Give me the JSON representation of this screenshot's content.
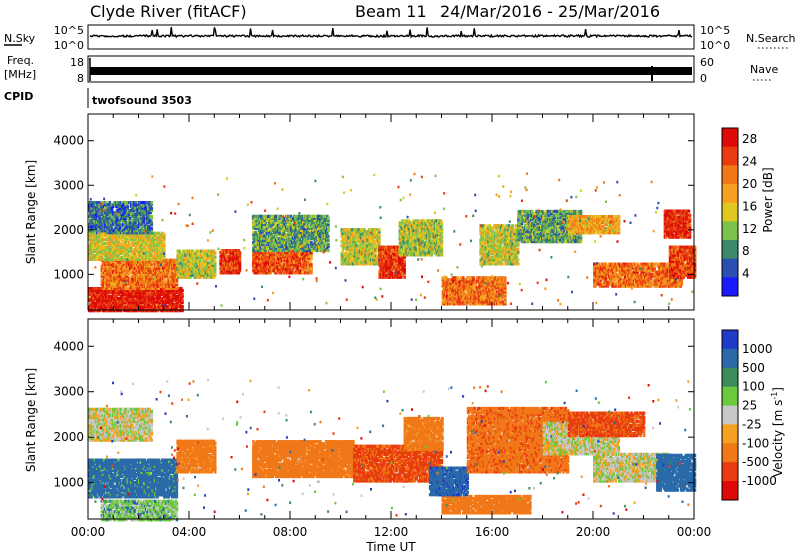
{
  "header": {
    "station": "Clyde River (fitACF)",
    "beam": "Beam 11",
    "dates": "24/Mar/2016 - 25/Mar/2016"
  },
  "strips": {
    "nsky_label": "N.Sky",
    "nsky_ticks": [
      "10^5",
      "10^0"
    ],
    "nsearch_label": "N.Search",
    "nsearch_ticks": [
      "10^5",
      "10^0"
    ],
    "freq_label_1": "Freq.",
    "freq_label_2": "[MHz]",
    "freq_ticks": [
      "18",
      "8"
    ],
    "nave_label": "Nave",
    "nave_ticks": [
      "60",
      "0"
    ],
    "cpid_label": "CPID",
    "cpid_value": "twofsound 3503"
  },
  "chart_data": [
    {
      "type": "heatmap",
      "title": "",
      "xlabel": "",
      "ylabel": "Slant Range [km]",
      "xlim_hours": [
        0,
        24
      ],
      "ylim_km": [
        200,
        4600
      ],
      "y_ticks": [
        "1000",
        "2000",
        "3000",
        "4000"
      ],
      "colorbar": {
        "label": "Power [dB]",
        "ticks": [
          "4",
          "8",
          "12",
          "16",
          "20",
          "24",
          "28"
        ],
        "range": [
          0,
          30
        ],
        "colors": [
          "#1a1aff",
          "#2a4fb0",
          "#3d8a6a",
          "#7dc24a",
          "#e0c820",
          "#f5a020",
          "#f07818",
          "#e83c10",
          "#dd0a08"
        ]
      },
      "bands": [
        {
          "t": [
            0.0,
            3.7
          ],
          "r": [
            150,
            650
          ],
          "dB": 28
        },
        {
          "t": [
            0.5,
            3.5
          ],
          "r": [
            650,
            1300
          ],
          "dB": 22
        },
        {
          "t": [
            0.0,
            3.0
          ],
          "r": [
            1300,
            1900
          ],
          "dB": 15
        },
        {
          "t": [
            0.0,
            2.5
          ],
          "r": [
            1900,
            2600
          ],
          "dB": 7
        },
        {
          "t": [
            3.5,
            5.0
          ],
          "r": [
            900,
            1500
          ],
          "dB": 14
        },
        {
          "t": [
            5.2,
            6.0
          ],
          "r": [
            1000,
            1500
          ],
          "dB": 26
        },
        {
          "t": [
            6.5,
            8.8
          ],
          "r": [
            1000,
            1500
          ],
          "dB": 24
        },
        {
          "t": [
            6.5,
            9.5
          ],
          "r": [
            1500,
            2300
          ],
          "dB": 10
        },
        {
          "t": [
            10.0,
            11.5
          ],
          "r": [
            1200,
            2000
          ],
          "dB": 14
        },
        {
          "t": [
            11.5,
            12.5
          ],
          "r": [
            900,
            1600
          ],
          "dB": 26
        },
        {
          "t": [
            12.3,
            14.0
          ],
          "r": [
            1400,
            2200
          ],
          "dB": 13
        },
        {
          "t": [
            14.0,
            16.5
          ],
          "r": [
            300,
            900
          ],
          "dB": 22
        },
        {
          "t": [
            15.5,
            17.0
          ],
          "r": [
            1200,
            2100
          ],
          "dB": 14
        },
        {
          "t": [
            17.0,
            19.5
          ],
          "r": [
            1700,
            2400
          ],
          "dB": 10
        },
        {
          "t": [
            19.0,
            21.0
          ],
          "r": [
            1900,
            2300
          ],
          "dB": 18
        },
        {
          "t": [
            20.0,
            23.5
          ],
          "r": [
            700,
            1200
          ],
          "dB": 22
        },
        {
          "t": [
            22.8,
            23.8
          ],
          "r": [
            1800,
            2400
          ],
          "dB": 27
        },
        {
          "t": [
            23.0,
            24.0
          ],
          "r": [
            900,
            1600
          ],
          "dB": 25
        }
      ]
    },
    {
      "type": "heatmap",
      "title": "",
      "xlabel": "Time UT",
      "ylabel": "Slant Range [km]",
      "xlim_hours": [
        0,
        24
      ],
      "ylim_km": [
        200,
        4600
      ],
      "x_ticks": [
        "00:00",
        "04:00",
        "08:00",
        "12:00",
        "16:00",
        "20:00",
        "00:00"
      ],
      "y_ticks": [
        "1000",
        "2000",
        "3000",
        "4000"
      ],
      "colorbar": {
        "label": "Velocity [m s^-1]",
        "ticks": [
          "1000",
          "500",
          "100",
          "25",
          "-25",
          "-100",
          "-500",
          "-1000"
        ],
        "range": [
          -1000,
          1000
        ],
        "colors": [
          "#1e3cc8",
          "#2a6aa8",
          "#3d8a5a",
          "#6cc83c",
          "#c8c8c8",
          "#f5a020",
          "#f07818",
          "#e83c10",
          "#dd0a08"
        ]
      },
      "bands": [
        {
          "t": [
            0.0,
            2.5
          ],
          "r": [
            1900,
            2600
          ],
          "v": 0
        },
        {
          "t": [
            0.0,
            3.5
          ],
          "r": [
            650,
            1500
          ],
          "v": 150
        },
        {
          "t": [
            0.5,
            3.5
          ],
          "r": [
            150,
            600
          ],
          "v": 60
        },
        {
          "t": [
            3.5,
            5.0
          ],
          "r": [
            1200,
            1900
          ],
          "v": -150
        },
        {
          "t": [
            6.5,
            10.5
          ],
          "r": [
            1100,
            1900
          ],
          "v": -350
        },
        {
          "t": [
            10.5,
            14.0
          ],
          "r": [
            1000,
            1800
          ],
          "v": -600
        },
        {
          "t": [
            12.5,
            14.0
          ],
          "r": [
            1700,
            2400
          ],
          "v": -150
        },
        {
          "t": [
            14.0,
            17.5
          ],
          "r": [
            300,
            700
          ],
          "v": -200
        },
        {
          "t": [
            13.5,
            15.0
          ],
          "r": [
            700,
            1300
          ],
          "v": 400
        },
        {
          "t": [
            15.0,
            19.0
          ],
          "r": [
            1200,
            2600
          ],
          "v": -400
        },
        {
          "t": [
            18.0,
            21.0
          ],
          "r": [
            1600,
            2300
          ],
          "v": 0
        },
        {
          "t": [
            19.0,
            22.0
          ],
          "r": [
            2000,
            2500
          ],
          "v": -600
        },
        {
          "t": [
            20.0,
            23.0
          ],
          "r": [
            1000,
            1600
          ],
          "v": 0
        },
        {
          "t": [
            22.5,
            24.0
          ],
          "r": [
            800,
            1600
          ],
          "v": 350
        }
      ]
    }
  ]
}
